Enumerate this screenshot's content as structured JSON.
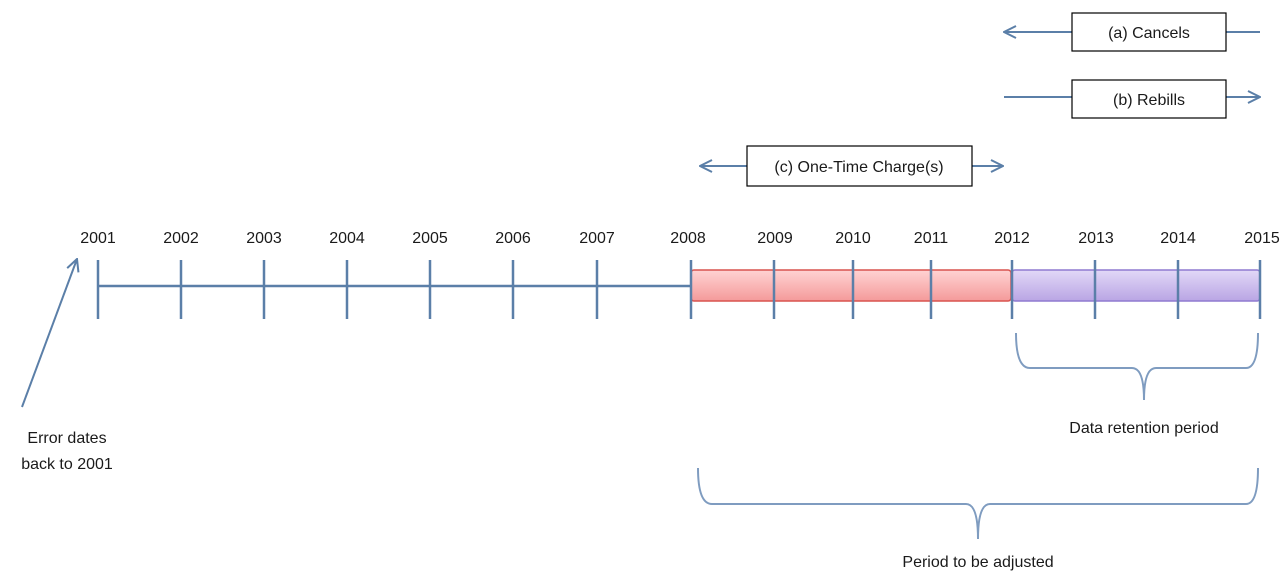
{
  "colors": {
    "line": "#5b7fa8",
    "adjust_fill": "#f7b3b3",
    "adjust_stroke": "#d9534f",
    "retention_fill": "#c8b8ea",
    "retention_stroke": "#8f7ad0",
    "bracket": "#7f9cc0",
    "box_stroke": "#000000"
  },
  "timeline": {
    "years": [
      "2001",
      "2002",
      "2003",
      "2004",
      "2005",
      "2006",
      "2007",
      "2008",
      "2009",
      "2010",
      "2011",
      "2012",
      "2013",
      "2014",
      "2015"
    ]
  },
  "periods": {
    "adjusted": {
      "start": "2008",
      "end": "2012"
    },
    "retention": {
      "start": "2012",
      "end": "2015"
    }
  },
  "labels": {
    "cancels": "(a) Cancels",
    "rebills": "(b) Rebills",
    "one_time": "(c) One-Time Charge(s)",
    "error_line1": "Error dates",
    "error_line2": "back to 2001",
    "retention": "Data retention period",
    "adjusted": "Period to be adjusted"
  }
}
